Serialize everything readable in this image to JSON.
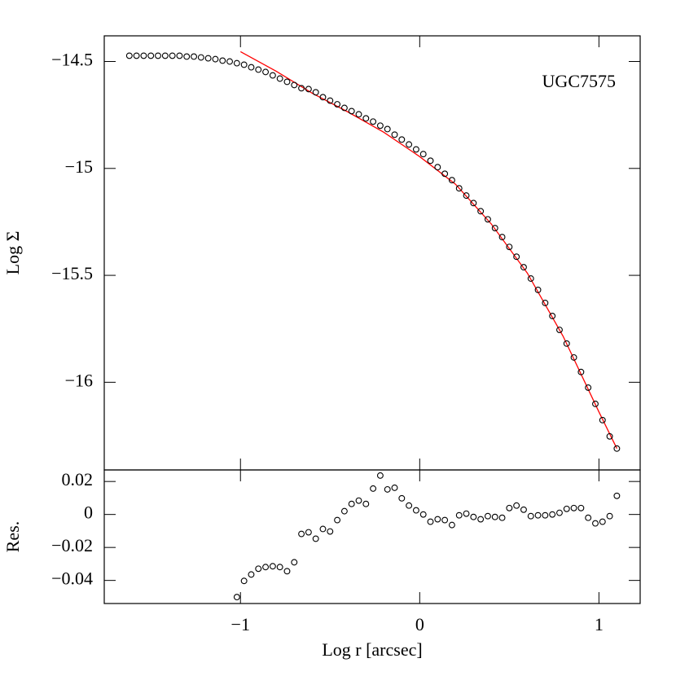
{
  "chart_data": [
    {
      "type": "scatter",
      "annotation": "UGC7575",
      "ylabel": "Log Σ",
      "xlim": [
        -1.76,
        1.23
      ],
      "ylim": [
        -16.41,
        -14.38
      ],
      "xticks": [
        -1,
        0,
        1
      ],
      "yticks": [
        {
          "value": -14.5,
          "label": "−14.5"
        },
        {
          "value": -15,
          "label": "−15"
        },
        {
          "value": -15.5,
          "label": "−15.5"
        },
        {
          "value": -16,
          "label": "−16"
        }
      ],
      "color": "#000000",
      "x": [
        -1.62,
        -1.58,
        -1.54,
        -1.5,
        -1.46,
        -1.42,
        -1.38,
        -1.34,
        -1.3,
        -1.26,
        -1.22,
        -1.18,
        -1.14,
        -1.1,
        -1.06,
        -1.02,
        -0.98,
        -0.94,
        -0.9,
        -0.86,
        -0.82,
        -0.78,
        -0.74,
        -0.7,
        -0.66,
        -0.62,
        -0.58,
        -0.54,
        -0.5,
        -0.46,
        -0.42,
        -0.38,
        -0.34,
        -0.3,
        -0.26,
        -0.22,
        -0.18,
        -0.14,
        -0.1,
        -0.06,
        -0.02,
        0.02,
        0.06,
        0.1,
        0.14,
        0.18,
        0.22,
        0.26,
        0.3,
        0.34,
        0.38,
        0.42,
        0.46,
        0.5,
        0.54,
        0.58,
        0.62,
        0.66,
        0.7,
        0.74,
        0.78,
        0.82,
        0.86,
        0.9,
        0.94,
        0.98,
        1.02,
        1.06,
        1.1
      ],
      "values": [
        -14.473,
        -14.473,
        -14.473,
        -14.473,
        -14.473,
        -14.473,
        -14.473,
        -14.473,
        -14.477,
        -14.477,
        -14.481,
        -14.485,
        -14.489,
        -14.496,
        -14.5,
        -14.508,
        -14.515,
        -14.527,
        -14.538,
        -14.549,
        -14.565,
        -14.58,
        -14.595,
        -14.61,
        -14.625,
        -14.629,
        -14.644,
        -14.667,
        -14.683,
        -14.7,
        -14.717,
        -14.732,
        -14.747,
        -14.766,
        -14.781,
        -14.8,
        -14.816,
        -14.842,
        -14.865,
        -14.888,
        -14.911,
        -14.933,
        -14.964,
        -14.994,
        -15.025,
        -15.055,
        -15.093,
        -15.127,
        -15.162,
        -15.2,
        -15.238,
        -15.279,
        -15.321,
        -15.367,
        -15.413,
        -15.462,
        -15.515,
        -15.568,
        -15.629,
        -15.69,
        -15.755,
        -15.819,
        -15.884,
        -15.952,
        -16.025,
        -16.101,
        -16.177,
        -16.253,
        -16.31
      ],
      "fit": {
        "color": "#ff0000",
        "x": [
          -1.0,
          -0.8,
          -0.6,
          -0.4,
          -0.2,
          0,
          0.2,
          0.4,
          0.6,
          0.8,
          1.0,
          1.1
        ],
        "values": [
          -14.454,
          -14.546,
          -14.648,
          -14.736,
          -14.831,
          -14.945,
          -15.074,
          -15.26,
          -15.489,
          -15.785,
          -16.139,
          -16.31
        ]
      }
    },
    {
      "type": "scatter",
      "ylabel": "Res.",
      "xlabel": "Log r [arcsec]",
      "xlim": [
        -1.76,
        1.23
      ],
      "ylim": [
        -0.054,
        0.027
      ],
      "xticks": [
        {
          "value": -1,
          "label": "−1"
        },
        0,
        1
      ],
      "yticks": [
        0.02,
        0,
        {
          "value": -0.02,
          "label": "−0.02"
        },
        {
          "value": -0.04,
          "label": "−0.04"
        }
      ],
      "color": "#000000",
      "x": [
        -1.02,
        -0.98,
        -0.94,
        -0.9,
        -0.86,
        -0.82,
        -0.78,
        -0.74,
        -0.7,
        -0.66,
        -0.62,
        -0.58,
        -0.54,
        -0.5,
        -0.46,
        -0.42,
        -0.38,
        -0.34,
        -0.3,
        -0.26,
        -0.22,
        -0.18,
        -0.14,
        -0.1,
        -0.06,
        -0.02,
        0.02,
        0.06,
        0.1,
        0.14,
        0.18,
        0.22,
        0.26,
        0.3,
        0.34,
        0.38,
        0.42,
        0.46,
        0.5,
        0.54,
        0.58,
        0.62,
        0.66,
        0.7,
        0.74,
        0.78,
        0.82,
        0.86,
        0.9,
        0.94,
        0.98,
        1.02,
        1.06,
        1.1
      ],
      "values": [
        -0.0501,
        -0.0403,
        -0.0364,
        -0.0329,
        -0.0319,
        -0.0314,
        -0.0319,
        -0.0344,
        -0.029,
        -0.0118,
        -0.0108,
        -0.0147,
        -0.0088,
        -0.0103,
        -0.0034,
        0.002,
        0.0064,
        0.0084,
        0.0064,
        0.0157,
        0.0236,
        0.0152,
        0.0162,
        0.0098,
        0.0054,
        0.0025,
        0,
        -0.0044,
        -0.0029,
        -0.0034,
        -0.0064,
        -0.0005,
        0.0005,
        -0.0015,
        -0.0029,
        -0.001,
        -0.0015,
        -0.002,
        0.0039,
        0.0054,
        0.0029,
        -0.001,
        -0.0005,
        -0.0005,
        0,
        0.001,
        0.0034,
        0.0039,
        0.0039,
        -0.002,
        -0.0054,
        -0.0044,
        -0.001,
        0.0113
      ]
    }
  ]
}
